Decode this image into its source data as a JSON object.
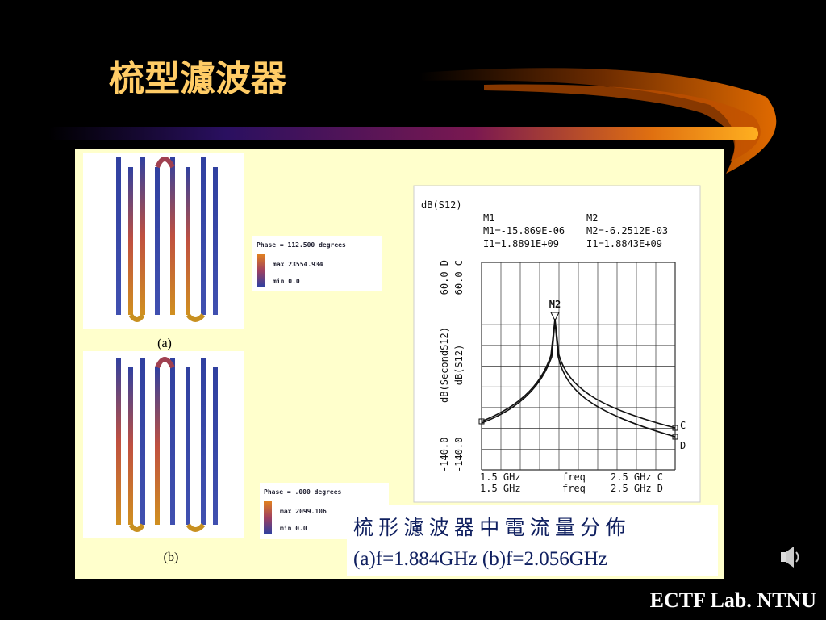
{
  "title": "梳型濾波器",
  "figures": [
    {
      "label": "(a)",
      "legend": {
        "phase": "Phase = 112.500 degrees",
        "max": "max 23554.934",
        "min": "min 0.0"
      }
    },
    {
      "label": "(b)",
      "legend": {
        "phase": "Phase = .000 degrees",
        "max": "max 2099.106",
        "min": "min 0.0"
      }
    }
  ],
  "plot": {
    "header": "dB(S12)",
    "markers": [
      {
        "name": "M1",
        "value": "M1=-15.869E-06",
        "freq": "I1=1.8891E+09"
      },
      {
        "name": "M2",
        "value": "M2=-6.2512E-03",
        "freq": "I1=1.8843E+09"
      }
    ],
    "y_axes": [
      {
        "min": "-140.0",
        "label": "dB(SecondS12)",
        "max": "60.0 D"
      },
      {
        "min": "-140.0",
        "label": "dB(S12)",
        "max": "60.0 C"
      }
    ],
    "x_axes": [
      {
        "start": "1.5 GHz",
        "label": "freq",
        "end": "2.5 GHz C"
      },
      {
        "start": "1.5 GHz",
        "label": "freq",
        "end": "2.5 GHz D"
      }
    ],
    "peak_marker": "M2",
    "traces": [
      "C",
      "D"
    ]
  },
  "caption": [
    "梳 形 濾 波 器 中 電 流 量 分 佈",
    "(a)f=1.884GHz (b)f=2.056GHz"
  ],
  "footer": "ECTF Lab. NTNU"
}
